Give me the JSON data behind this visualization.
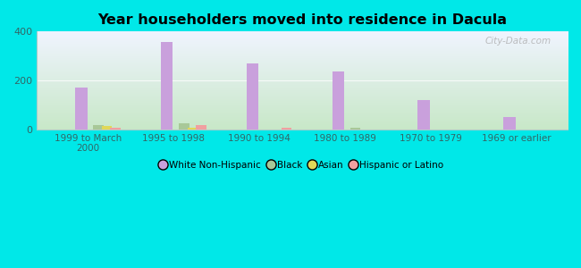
{
  "title": "Year householders moved into residence in Dacula",
  "categories": [
    "1999 to March\n2000",
    "1995 to 1998",
    "1990 to 1994",
    "1980 to 1989",
    "1970 to 1979",
    "1969 or earlier"
  ],
  "white_non_hispanic": [
    172,
    358,
    268,
    236,
    120,
    50
  ],
  "black": [
    18,
    26,
    0,
    6,
    0,
    0
  ],
  "asian": [
    15,
    5,
    0,
    0,
    0,
    0
  ],
  "hispanic": [
    7,
    18,
    7,
    0,
    0,
    0
  ],
  "white_color": "#c9a0dc",
  "black_color": "#a8c898",
  "asian_color": "#e0d858",
  "hispanic_color": "#f0a0a0",
  "bg_outer": "#00e8e8",
  "ylim": [
    0,
    400
  ],
  "yticks": [
    0,
    200,
    400
  ],
  "watermark": "City-Data.com",
  "legend_labels": [
    "White Non-Hispanic",
    "Black",
    "Asian",
    "Hispanic or Latino"
  ],
  "bar_width": 0.12,
  "white_bar_width": 0.14
}
